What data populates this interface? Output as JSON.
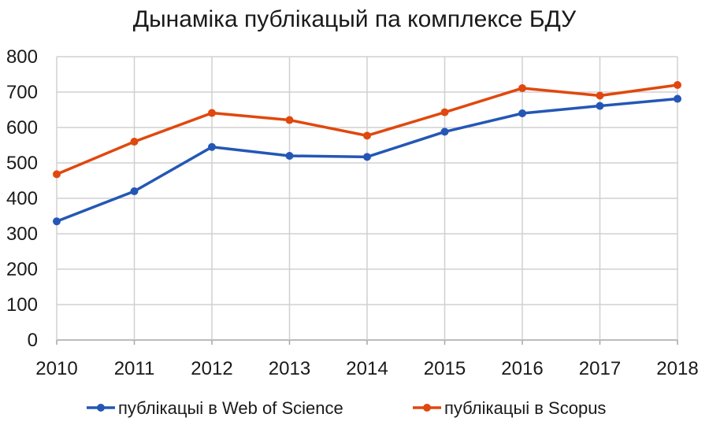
{
  "chart_data": {
    "type": "line",
    "title": "Дынаміка публікацый па комплексе БДУ",
    "xlabel": "",
    "ylabel": "",
    "categories": [
      "2010",
      "2011",
      "2012",
      "2013",
      "2014",
      "2015",
      "2016",
      "2017",
      "2018"
    ],
    "ylim": [
      0,
      800
    ],
    "yticks": [
      0,
      100,
      200,
      300,
      400,
      500,
      600,
      700,
      800
    ],
    "grid": true,
    "legend_position": "bottom",
    "series": [
      {
        "name": "публікацыі в Web of Science",
        "color": "#2457b5",
        "values": [
          335,
          420,
          545,
          520,
          517,
          588,
          640,
          661,
          681
        ]
      },
      {
        "name": "публікацыі в Scopus",
        "color": "#e0480e",
        "values": [
          468,
          560,
          641,
          621,
          577,
          643,
          711,
          690,
          720
        ]
      }
    ]
  }
}
